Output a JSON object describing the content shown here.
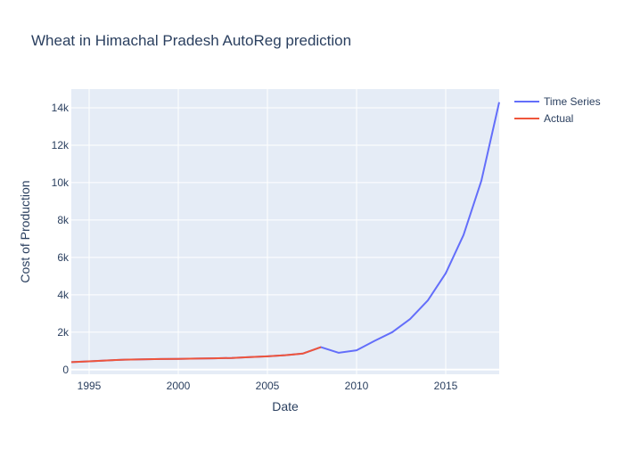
{
  "chart_data": {
    "type": "line",
    "title": "Wheat in Himachal Pradesh AutoReg prediction",
    "xlabel": "Date",
    "ylabel": "Cost of Production",
    "xlim": [
      1994,
      2018
    ],
    "ylim": [
      -250,
      15000
    ],
    "x_ticks": [
      1995,
      2000,
      2005,
      2010,
      2015
    ],
    "x_tick_labels": [
      "1995",
      "2000",
      "2005",
      "2010",
      "2015"
    ],
    "y_ticks": [
      0,
      2000,
      4000,
      6000,
      8000,
      10000,
      12000,
      14000
    ],
    "y_tick_labels": [
      "0",
      "2k",
      "4k",
      "6k",
      "8k",
      "10k",
      "12k",
      "14k"
    ],
    "grid": true,
    "legend_position": "top-right",
    "series": [
      {
        "name": "Time Series",
        "color": "#636efa",
        "x": [
          1994,
          1995,
          1996,
          1997,
          1998,
          1999,
          2000,
          2001,
          2002,
          2003,
          2004,
          2005,
          2006,
          2007,
          2008,
          2009,
          2010,
          2011,
          2012,
          2013,
          2014,
          2015,
          2016,
          2017,
          2018
        ],
        "y": [
          400,
          440,
          490,
          530,
          550,
          565,
          575,
          590,
          605,
          620,
          665,
          710,
          770,
          860,
          1200,
          900,
          1030,
          1530,
          2000,
          2700,
          3700,
          5150,
          7200,
          10100,
          14300
        ]
      },
      {
        "name": "Actual",
        "color": "#ef553b",
        "x": [
          1994,
          1995,
          1996,
          1997,
          1998,
          1999,
          2000,
          2001,
          2002,
          2003,
          2004,
          2005,
          2006,
          2007,
          2008
        ],
        "y": [
          400,
          440,
          490,
          530,
          550,
          565,
          575,
          590,
          605,
          620,
          665,
          710,
          770,
          860,
          1200
        ]
      }
    ]
  }
}
